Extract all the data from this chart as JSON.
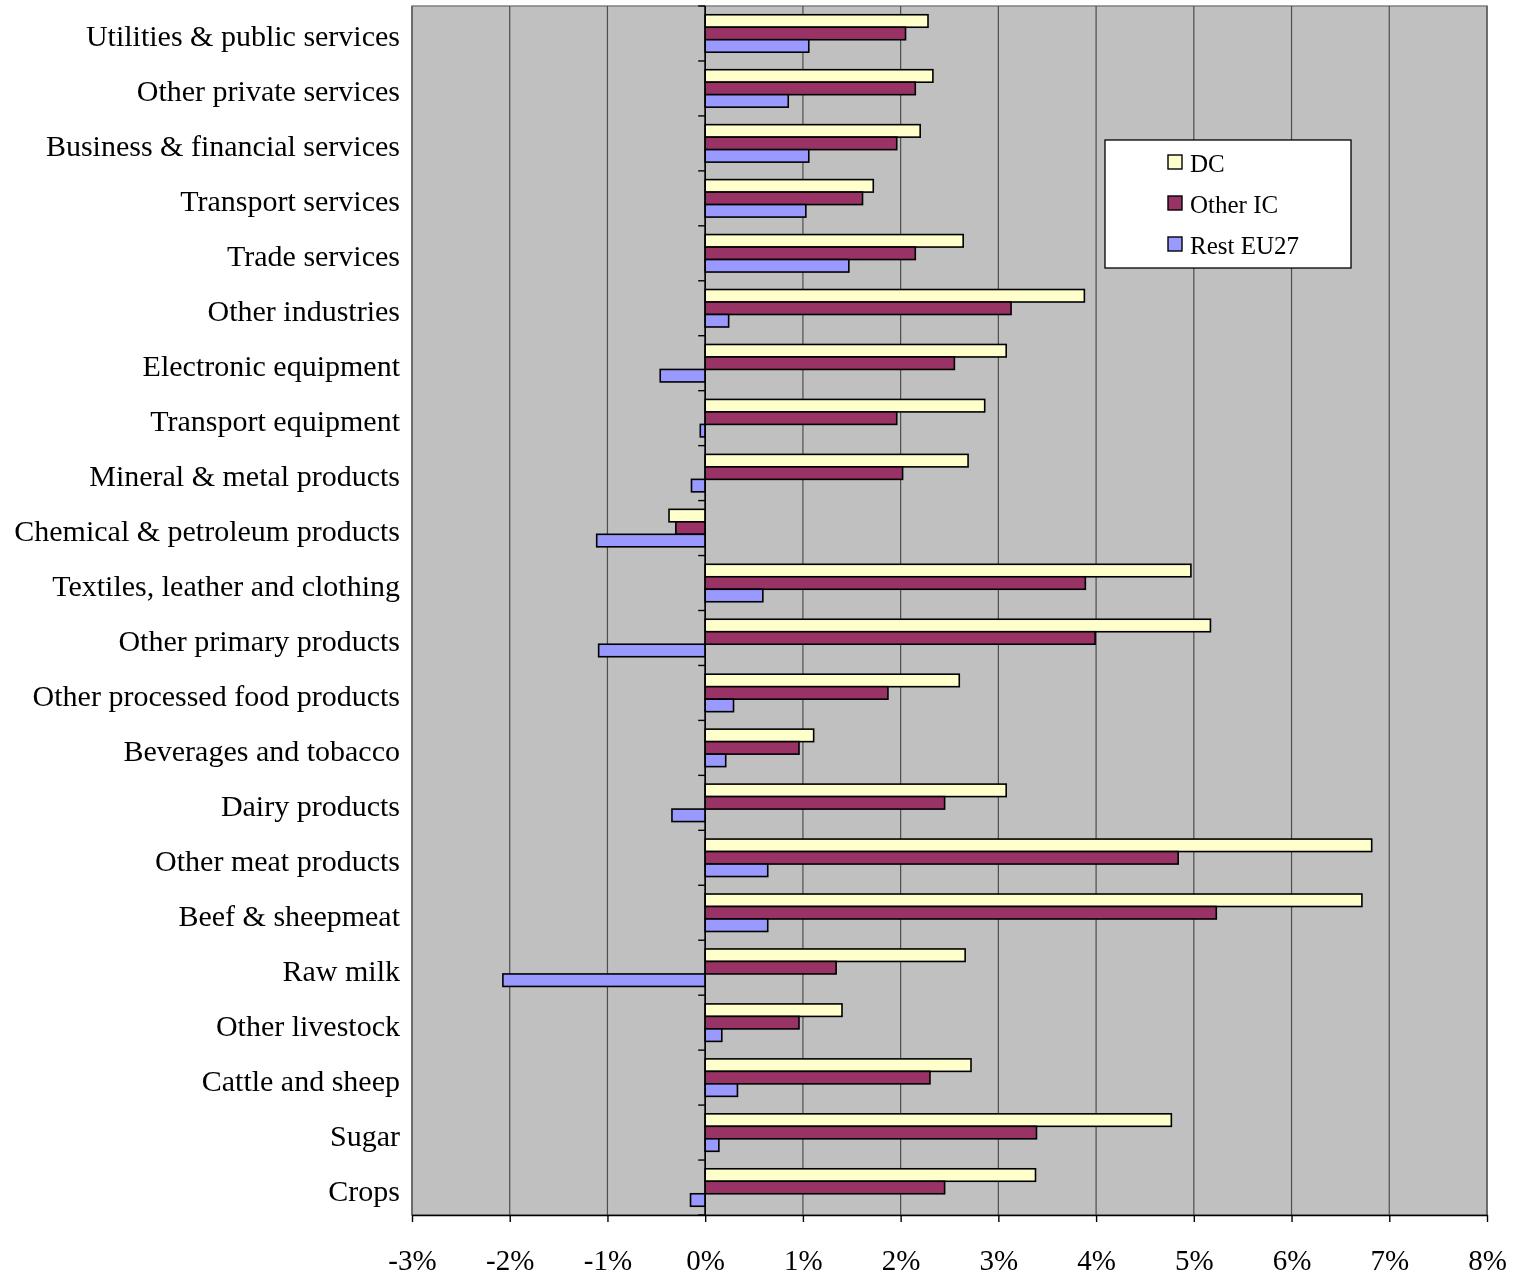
{
  "chart_data": {
    "type": "bar",
    "orientation": "horizontal",
    "categories": [
      "Utilities & public services",
      "Other private services",
      "Business & financial services",
      "Transport services",
      "Trade services",
      "Other industries",
      "Electronic equipment",
      "Transport equipment",
      "Mineral & metal products",
      "Chemical & petroleum products",
      "Textiles, leather and clothing",
      "Other primary products",
      "Other processed food products",
      "Beverages and tobacco",
      "Dairy products",
      "Other meat products",
      "Beef & sheepmeat",
      "Raw milk",
      "Other livestock",
      "Cattle and sheep",
      "Sugar",
      "Crops"
    ],
    "series": [
      {
        "name": "DC",
        "color": "#ffffcc",
        "values": [
          2.28,
          2.33,
          2.2,
          1.72,
          2.64,
          3.88,
          3.08,
          2.86,
          2.69,
          -0.37,
          4.97,
          5.17,
          2.6,
          1.11,
          3.08,
          6.82,
          6.72,
          2.66,
          1.4,
          2.72,
          4.77,
          3.38
        ]
      },
      {
        "name": "Other IC",
        "color": "#993366",
        "values": [
          2.05,
          2.15,
          1.96,
          1.61,
          2.15,
          3.13,
          2.55,
          1.96,
          2.02,
          -0.3,
          3.89,
          3.99,
          1.87,
          0.96,
          2.45,
          4.84,
          5.23,
          1.34,
          0.96,
          2.3,
          3.39,
          2.45
        ]
      },
      {
        "name": "Rest EU27",
        "color": "#9999ff",
        "values": [
          1.06,
          0.85,
          1.06,
          1.03,
          1.47,
          0.24,
          -0.46,
          -0.05,
          -0.14,
          -1.11,
          0.59,
          -1.09,
          0.29,
          0.21,
          -0.34,
          0.64,
          0.64,
          -2.07,
          0.17,
          0.33,
          0.14,
          -0.15
        ]
      }
    ],
    "xlim": [
      -3,
      8
    ],
    "xticks": [
      {
        "value": -3,
        "label": "-3%"
      },
      {
        "value": -2,
        "label": "-2%"
      },
      {
        "value": -1,
        "label": "-1%"
      },
      {
        "value": 0,
        "label": "0%"
      },
      {
        "value": 1,
        "label": "1%"
      },
      {
        "value": 2,
        "label": "2%"
      },
      {
        "value": 3,
        "label": "3%"
      },
      {
        "value": 4,
        "label": "4%"
      },
      {
        "value": 5,
        "label": "5%"
      },
      {
        "value": 6,
        "label": "6%"
      },
      {
        "value": 7,
        "label": "7%"
      },
      {
        "value": 8,
        "label": "8%"
      }
    ],
    "grid": "x",
    "legend": "top right"
  }
}
